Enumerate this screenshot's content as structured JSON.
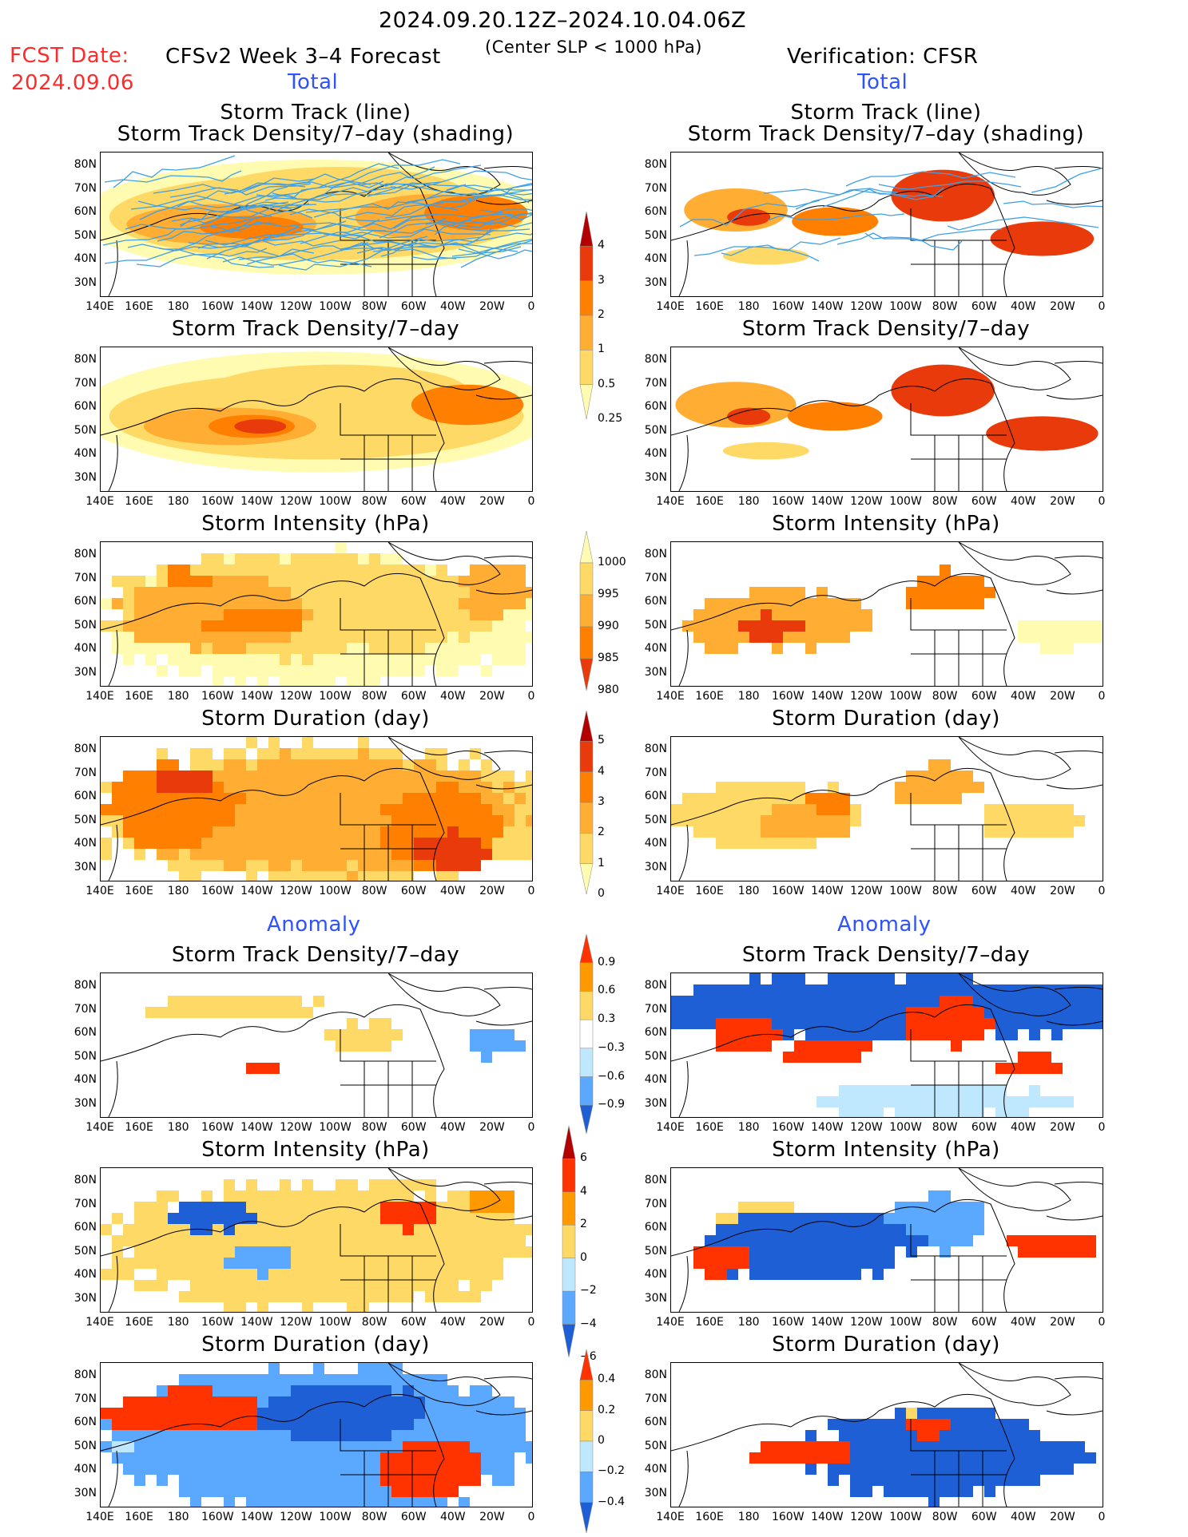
{
  "header": {
    "date_range": "2024.09.20.12Z–2024.10.04.06Z",
    "fcst_label": "FCST Date:",
    "fcst_date": "2024.09.06",
    "model": "CFSv2 Week 3–4 Forecast",
    "criterion": "(Center SLP < 1000 hPa)",
    "verification": "Verification: CFSR",
    "total_left": "Total",
    "total_right": "Total",
    "anomaly_left": "Anomaly",
    "anomaly_right": "Anomaly"
  },
  "panel_titles": {
    "track_line": "Storm Track (line)",
    "track_shading": "Storm Track Density/7–day (shading)",
    "density": "Storm Track Density/7–day",
    "intensity": "Storm Intensity (hPa)",
    "duration": "Storm Duration (day)"
  },
  "axes": {
    "lat_labels": [
      "80N",
      "70N",
      "60N",
      "50N",
      "40N",
      "30N"
    ],
    "lon_labels": [
      "140E",
      "160E",
      "180",
      "160W",
      "140W",
      "120W",
      "100W",
      "80W",
      "60W",
      "40W",
      "20W",
      "0"
    ]
  },
  "colorbars": {
    "density_total": [
      "4",
      "3",
      "2",
      "1",
      "0.5",
      "0.25"
    ],
    "intensity_total": [
      "1000",
      "995",
      "990",
      "985",
      "980"
    ],
    "duration_total": [
      "5",
      "4",
      "3",
      "2",
      "1",
      "0"
    ],
    "density_anom": [
      "0.9",
      "0.6",
      "0.3",
      "−0.3",
      "−0.6",
      "−0.9"
    ],
    "intensity_anom": [
      "6",
      "4",
      "2",
      "0",
      "−2",
      "−4",
      "−6"
    ],
    "duration_anom": [
      "0.4",
      "0.2",
      "0",
      "−0.2",
      "−0.4"
    ]
  },
  "colors": {
    "seq": [
      "#fffbb0",
      "#ffd966",
      "#ffad33",
      "#ff7f00",
      "#e83a0a",
      "#b30000"
    ],
    "div_pos": [
      "#ffd966",
      "#ff9900",
      "#ff3300"
    ],
    "div_neg": [
      "#bfe8ff",
      "#5aa8ff",
      "#1f5fd6"
    ],
    "track_line": "#3fa0e6"
  }
}
